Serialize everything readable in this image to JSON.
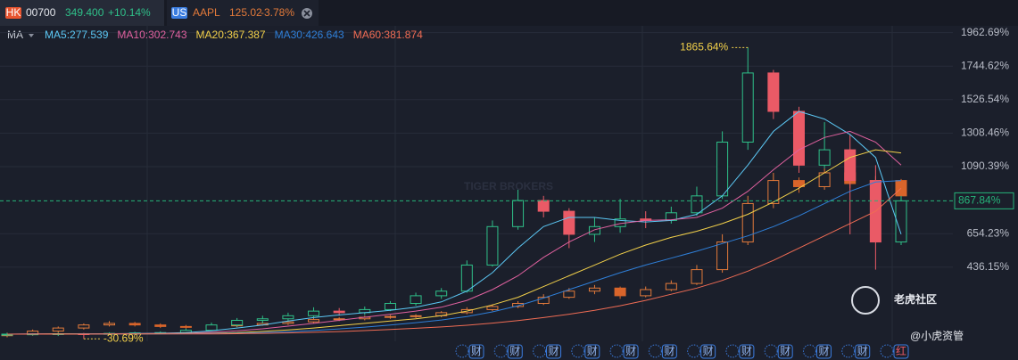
{
  "header": {
    "tabs": [
      {
        "badge": "HK",
        "code": "00700",
        "price": "349.400",
        "change": "+10.14%"
      },
      {
        "badge": "US",
        "code": "AAPL",
        "price": "125.02",
        "change": "-3.78%"
      }
    ]
  },
  "indicator_selector": "MA",
  "legend_separator": ":",
  "watermarks": {
    "center": "TIGER BROKERS",
    "community": "老虎社区",
    "account": "@小虎资管"
  },
  "events": [
    "财",
    "财",
    "财",
    "财",
    "财",
    "财",
    "财",
    "财",
    "财",
    "财",
    "财",
    "红"
  ],
  "chart_data": {
    "type": "candlestick",
    "ylim": [
      -116,
      2012.6
    ],
    "yticks": [
      {
        "value": 1962.69,
        "label": "1962.69%"
      },
      {
        "value": 1744.62,
        "label": "1744.62%"
      },
      {
        "value": 1526.54,
        "label": "1526.54%"
      },
      {
        "value": 1308.46,
        "label": "1308.46%"
      },
      {
        "value": 1090.39,
        "label": "1090.39%"
      },
      {
        "value": 654.23,
        "label": "654.23%"
      },
      {
        "value": 436.15,
        "label": "436.15%"
      }
    ],
    "last": {
      "value": 867.84,
      "label": "867.84%",
      "color": "#26b57a"
    },
    "annotations": [
      {
        "index": 29,
        "value": 1865.64,
        "label": "1865.64%",
        "color": "#f2d04a",
        "side": "left"
      },
      {
        "index": 3,
        "value": -30.69,
        "label": "-30.69%",
        "color": "#f2d04a",
        "side": "right"
      }
    ],
    "series": [
      {
        "color_up": "#2fc089",
        "color_down": "#ea5a66",
        "open": [
          -5,
          0,
          2,
          3,
          1,
          5,
          8,
          10,
          25,
          60,
          90,
          100,
          120,
          150,
          140,
          160,
          200,
          250,
          280,
          450,
          700,
          870,
          800,
          650,
          700,
          750,
          740,
          790,
          900,
          1250,
          1700,
          1450,
          1100,
          1200,
          1000,
          600
        ],
        "high": [
          8,
          6,
          10,
          8,
          12,
          15,
          18,
          35,
          75,
          105,
          120,
          140,
          175,
          170,
          180,
          215,
          270,
          300,
          480,
          740,
          940,
          900,
          820,
          760,
          880,
          800,
          830,
          960,
          1320,
          1865.64,
          1720,
          1480,
          1380,
          1300,
          1100,
          900
        ],
        "low": [
          -10,
          -8,
          -12,
          -30.69,
          -5,
          0,
          2,
          6,
          20,
          50,
          70,
          85,
          110,
          120,
          125,
          150,
          185,
          230,
          270,
          440,
          680,
          760,
          560,
          600,
          660,
          690,
          720,
          770,
          880,
          1200,
          1400,
          1050,
          1080,
          650,
          420,
          580
        ],
        "close": [
          0,
          2,
          3,
          1,
          5,
          8,
          10,
          25,
          60,
          90,
          100,
          120,
          150,
          140,
          160,
          200,
          250,
          280,
          450,
          700,
          870,
          800,
          650,
          700,
          750,
          740,
          790,
          900,
          1250,
          1700,
          1450,
          1100,
          1200,
          1000,
          600,
          867.84
        ]
      },
      {
        "color_up": "#e37a3a",
        "color_down": "#d9652b",
        "open": [
          -10,
          0,
          20,
          40,
          60,
          70,
          60,
          50,
          45,
          55,
          60,
          70,
          80,
          95,
          100,
          110,
          115,
          120,
          140,
          160,
          180,
          200,
          240,
          280,
          300,
          250,
          290,
          330,
          420,
          600,
          850,
          1000,
          960,
          1050,
          980,
          1000
        ],
        "high": [
          10,
          30,
          50,
          70,
          85,
          80,
          70,
          60,
          65,
          70,
          80,
          90,
          105,
          110,
          120,
          125,
          130,
          150,
          175,
          195,
          215,
          260,
          300,
          320,
          310,
          310,
          350,
          450,
          650,
          900,
          1050,
          1020,
          1080,
          1070,
          1030,
          1010
        ],
        "low": [
          -20,
          -10,
          10,
          30,
          50,
          50,
          40,
          35,
          40,
          45,
          55,
          60,
          70,
          85,
          90,
          100,
          105,
          110,
          130,
          150,
          170,
          190,
          230,
          260,
          230,
          240,
          280,
          320,
          400,
          580,
          820,
          920,
          940,
          950,
          960,
          880
        ],
        "close": [
          0,
          20,
          40,
          60,
          70,
          60,
          50,
          45,
          55,
          60,
          70,
          80,
          95,
          100,
          110,
          115,
          120,
          140,
          160,
          180,
          200,
          240,
          280,
          300,
          250,
          290,
          330,
          420,
          600,
          850,
          1000,
          960,
          1050,
          980,
          1000,
          900
        ]
      }
    ],
    "indicators": [
      {
        "name": "MA5",
        "value": 277.539,
        "color": "#5cc8f5",
        "values": [
          0,
          1,
          2,
          2,
          3,
          4,
          6,
          10,
          22,
          40,
          60,
          85,
          108,
          125,
          140,
          155,
          175,
          210,
          280,
          400,
          560,
          700,
          760,
          760,
          740,
          730,
          740,
          780,
          900,
          1100,
          1320,
          1450,
          1400,
          1300,
          1150,
          650
        ]
      },
      {
        "name": "MA10",
        "value": 302.743,
        "color": "#e0619f",
        "values": [
          0,
          1,
          1,
          2,
          2,
          3,
          4,
          6,
          12,
          22,
          35,
          52,
          70,
          90,
          110,
          130,
          150,
          175,
          220,
          290,
          380,
          500,
          600,
          680,
          720,
          740,
          745,
          760,
          820,
          930,
          1070,
          1200,
          1280,
          1320,
          1250,
          1100
        ]
      },
      {
        "name": "MA20",
        "value": 367.387,
        "color": "#f2d04a",
        "values": [
          0,
          0,
          1,
          1,
          2,
          2,
          3,
          4,
          6,
          10,
          18,
          28,
          40,
          55,
          70,
          85,
          100,
          120,
          150,
          190,
          240,
          310,
          380,
          450,
          520,
          580,
          630,
          670,
          720,
          780,
          860,
          950,
          1050,
          1150,
          1200,
          1180
        ]
      },
      {
        "name": "MA30",
        "value": 426.643,
        "color": "#2f7fd8",
        "values": [
          0,
          0,
          0,
          1,
          1,
          2,
          2,
          3,
          4,
          6,
          10,
          16,
          24,
          34,
          46,
          60,
          75,
          92,
          115,
          145,
          185,
          235,
          290,
          345,
          400,
          450,
          495,
          540,
          590,
          640,
          700,
          770,
          850,
          930,
          990,
          1000
        ]
      },
      {
        "name": "MA60",
        "value": 381.874,
        "color": "#f06c54",
        "values": [
          0,
          0,
          0,
          0,
          1,
          1,
          1,
          2,
          2,
          3,
          5,
          8,
          12,
          17,
          23,
          30,
          38,
          47,
          58,
          72,
          88,
          108,
          130,
          155,
          185,
          220,
          260,
          300,
          350,
          410,
          480,
          560,
          640,
          720,
          800,
          950
        ]
      }
    ]
  }
}
